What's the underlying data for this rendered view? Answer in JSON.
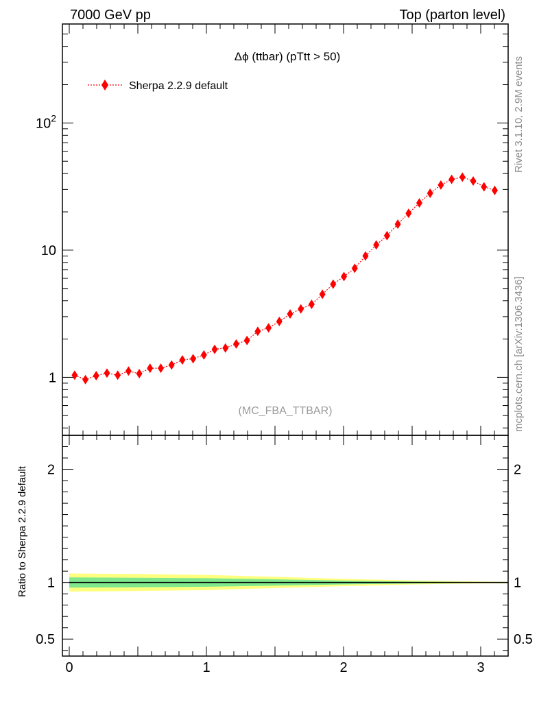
{
  "header": {
    "left": "7000 GeV pp",
    "right": "Top (parton level)"
  },
  "side": {
    "rivet": "Rivet 3.1.10,  2.9M events",
    "mcplots": "mcplots.cern.ch [arXiv:1306.3436]"
  },
  "colors": {
    "series": "#ff0000",
    "band_inner": "#7fe88c",
    "band_outer": "#ffff7f",
    "frame": "#000000"
  },
  "chart_data": [
    {
      "type": "scatter",
      "title": "Δϕ (ttbar) (pTtt > 50)",
      "subtitle": "(MC_FBA_TTBAR)",
      "xlabel": "",
      "ylabel": "",
      "xlim": [
        -0.05,
        3.2
      ],
      "ylim": [
        0.35,
        600
      ],
      "yscale": "log",
      "yticks": [
        1,
        10,
        100
      ],
      "ytick_labels": [
        "1",
        "10",
        "10^2"
      ],
      "legend_placement": "top-left",
      "series": [
        {
          "name": "Sherpa 2.2.9 default",
          "x": [
            0.0393,
            0.1178,
            0.1963,
            0.2749,
            0.3534,
            0.432,
            0.5105,
            0.589,
            0.6676,
            0.7461,
            0.8247,
            0.9032,
            0.9817,
            1.0603,
            1.1388,
            1.2174,
            1.2959,
            1.3744,
            1.453,
            1.5315,
            1.6101,
            1.6886,
            1.7671,
            1.8457,
            1.9242,
            2.0028,
            2.0813,
            2.1598,
            2.2384,
            2.3169,
            2.3955,
            2.474,
            2.5525,
            2.6311,
            2.7096,
            2.7882,
            2.8667,
            2.9452,
            3.0238,
            3.1023
          ],
          "y": [
            1.04,
            0.96,
            1.03,
            1.08,
            1.04,
            1.12,
            1.07,
            1.18,
            1.18,
            1.25,
            1.37,
            1.4,
            1.5,
            1.66,
            1.7,
            1.83,
            1.95,
            2.3,
            2.45,
            2.75,
            3.15,
            3.45,
            3.75,
            4.5,
            5.4,
            6.2,
            7.2,
            9.0,
            11.0,
            13.0,
            16.0,
            19.5,
            23.5,
            28.0,
            32.5,
            36.0,
            37.5,
            35.0,
            31.5,
            29.5
          ]
        }
      ]
    },
    {
      "type": "area",
      "title": "",
      "xlabel": "",
      "ylabel": "Ratio to Sherpa 2.2.9 default",
      "xlim": [
        -0.05,
        3.2
      ],
      "ylim": [
        0.35,
        2.3
      ],
      "yticks": [
        0.5,
        1,
        2
      ],
      "xticks": [
        0,
        1,
        2,
        3
      ],
      "series": [
        {
          "name": "Sherpa 2.2.9 default",
          "x": [
            0.0,
            0.5,
            1.0,
            1.5,
            2.0,
            2.5,
            3.0,
            3.2
          ],
          "y": [
            1,
            1,
            1,
            1,
            1,
            1,
            1,
            1
          ],
          "inner_lo": [
            0.955,
            0.958,
            0.962,
            0.972,
            0.983,
            0.991,
            0.996,
            0.997
          ],
          "inner_hi": [
            1.045,
            1.042,
            1.038,
            1.028,
            1.017,
            1.009,
            1.004,
            1.003
          ],
          "outer_lo": [
            0.92,
            0.925,
            0.933,
            0.95,
            0.968,
            0.982,
            0.992,
            0.994
          ],
          "outer_hi": [
            1.08,
            1.075,
            1.067,
            1.05,
            1.032,
            1.018,
            1.008,
            1.006
          ]
        }
      ]
    }
  ]
}
